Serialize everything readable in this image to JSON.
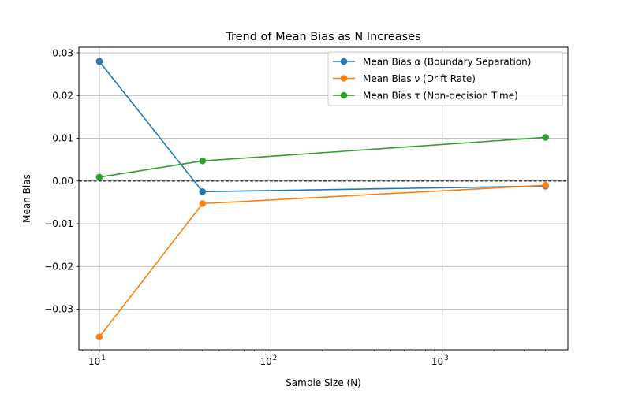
{
  "chart_data": {
    "type": "line",
    "title": "Trend of Mean Bias as N Increases",
    "xlabel": "Sample Size (N)",
    "ylabel": "Mean Bias",
    "x_scale": "log",
    "x": [
      10,
      40,
      4000
    ],
    "xlim": [
      7.6,
      5400
    ],
    "ylim": [
      -0.0395,
      0.0313
    ],
    "grid": true,
    "legend_position": "top-right",
    "reference_line": {
      "y": 0.0,
      "style": "dashed",
      "color": "#000000"
    },
    "x_ticks": [
      {
        "value": 10,
        "base": "10",
        "exp": "1"
      },
      {
        "value": 100,
        "base": "10",
        "exp": "2"
      },
      {
        "value": 1000,
        "base": "10",
        "exp": "3"
      }
    ],
    "y_ticks": [
      {
        "value": 0.03,
        "label": "0.03"
      },
      {
        "value": 0.02,
        "label": "0.02"
      },
      {
        "value": 0.01,
        "label": "0.01"
      },
      {
        "value": 0.0,
        "label": "0.00"
      },
      {
        "value": -0.01,
        "label": "−0.01"
      },
      {
        "value": -0.02,
        "label": "−0.02"
      },
      {
        "value": -0.03,
        "label": "−0.03"
      }
    ],
    "series": [
      {
        "name": "Mean Bias α (Boundary Separation)",
        "color": "#1f77b4",
        "values": [
          0.028,
          -0.0025,
          -0.0012
        ]
      },
      {
        "name": "Mean Bias ν (Drift Rate)",
        "color": "#ff7f0e",
        "values": [
          -0.0365,
          -0.0053,
          -0.001
        ]
      },
      {
        "name": "Mean Bias τ (Non-decision Time)",
        "color": "#2ca02c",
        "values": [
          0.0009,
          0.0047,
          0.0102
        ]
      }
    ]
  }
}
